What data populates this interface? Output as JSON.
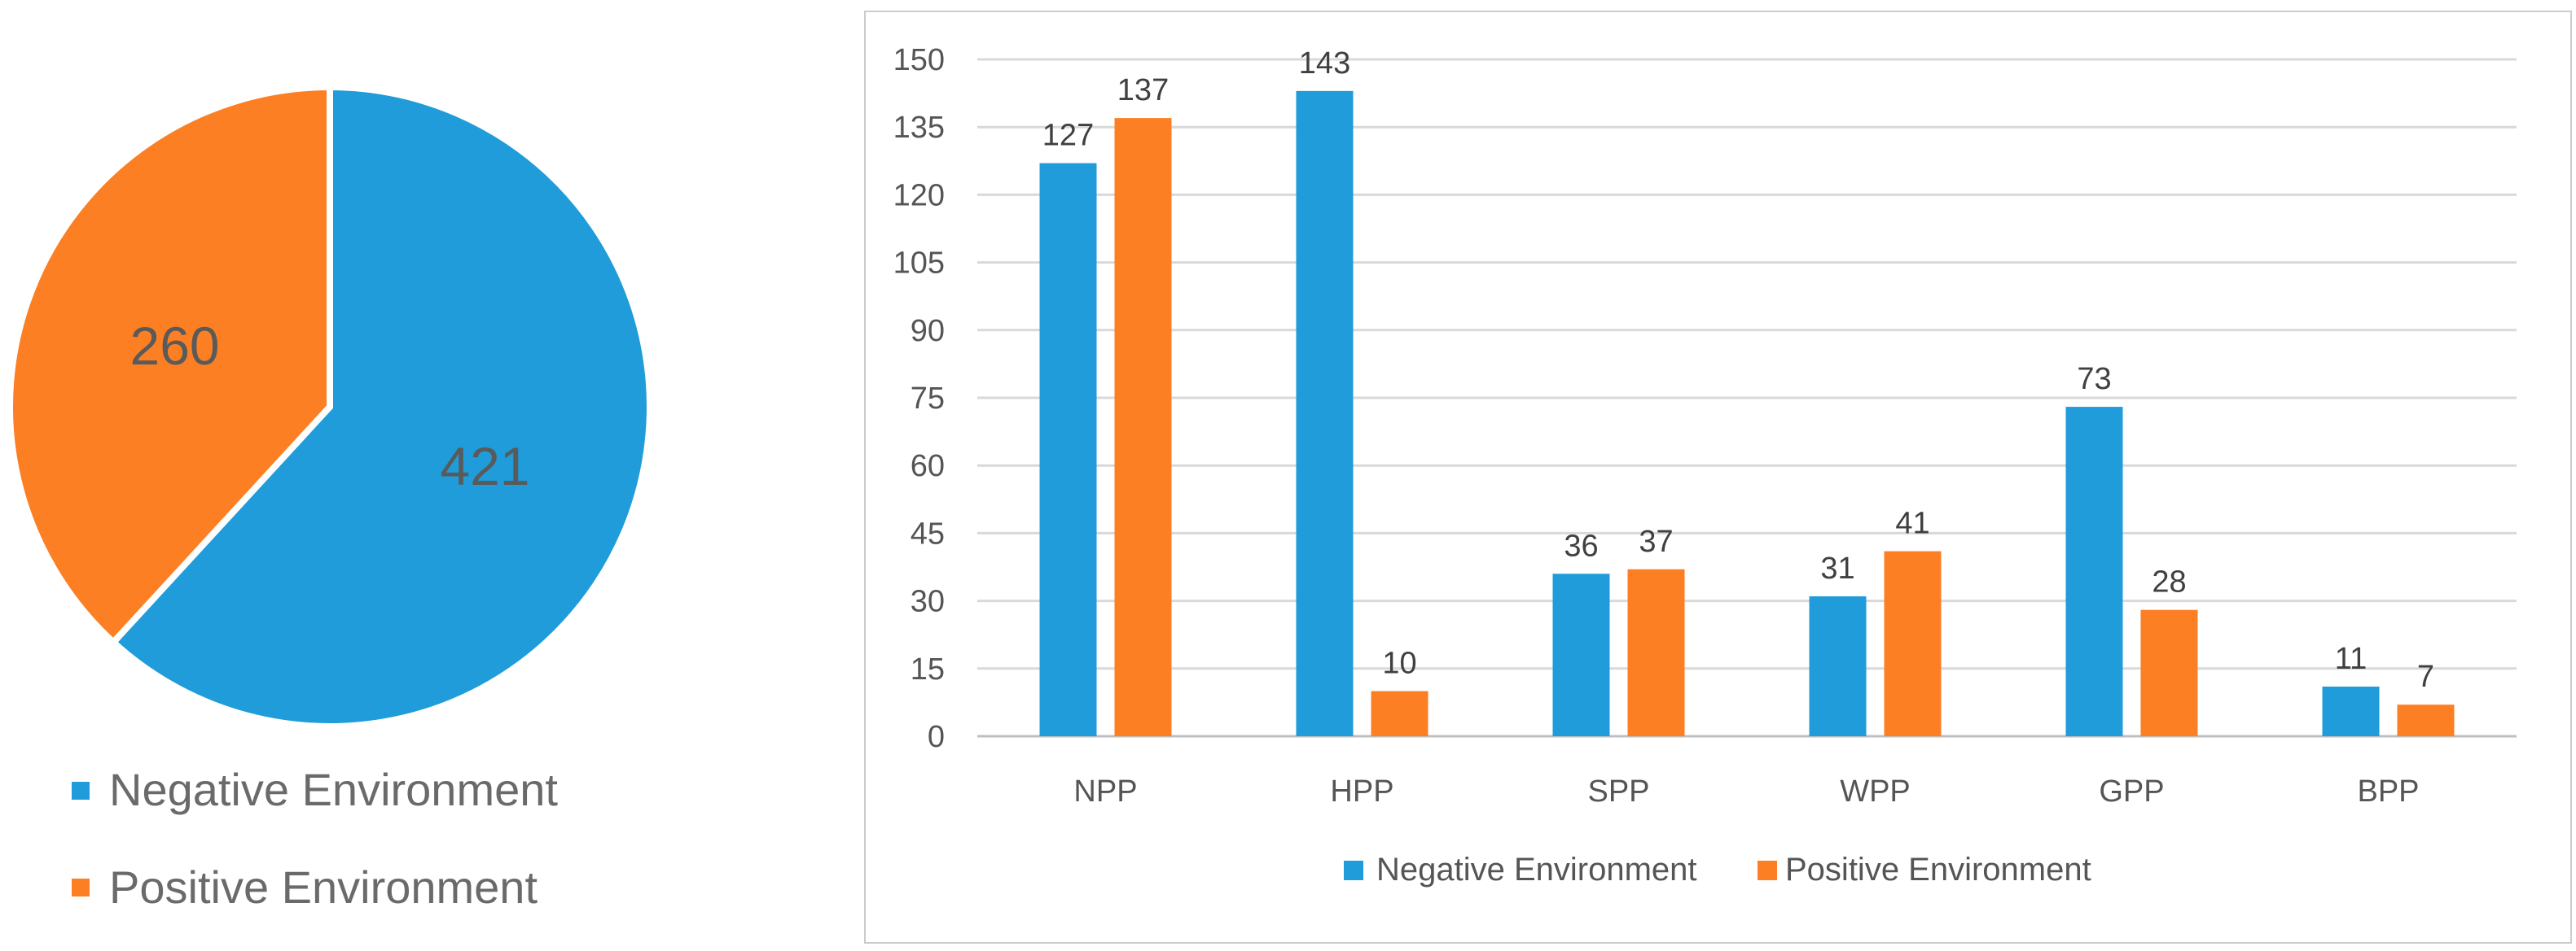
{
  "colors": {
    "negative": "#1f9cd9",
    "positive": "#fd7f23",
    "grid": "#d9d9d9",
    "axis": "#bfbfbf",
    "frame": "#cccccc"
  },
  "chart_data": [
    {
      "type": "pie",
      "title": "",
      "labels": [
        "Negative Environment",
        "Positive Environment"
      ],
      "values": [
        421,
        260
      ],
      "legend": {
        "position": "bottom-left",
        "entries": [
          "Negative Environment",
          "Positive Environment"
        ]
      }
    },
    {
      "type": "bar",
      "title": "",
      "xlabel": "",
      "ylabel": "",
      "categories": [
        "NPP",
        "HPP",
        "SPP",
        "WPP",
        "GPP",
        "BPP"
      ],
      "series": [
        {
          "name": "Negative Environment",
          "values": [
            127,
            143,
            36,
            31,
            73,
            11
          ]
        },
        {
          "name": "Positive Environment",
          "values": [
            137,
            10,
            37,
            41,
            28,
            7
          ]
        }
      ],
      "ylim": [
        0,
        150
      ],
      "yticks": [
        0,
        15,
        30,
        45,
        60,
        75,
        90,
        105,
        120,
        135,
        150
      ],
      "grid": true,
      "legend": {
        "position": "bottom-center",
        "entries": [
          "Negative Environment",
          "Positive Environment"
        ]
      }
    }
  ]
}
